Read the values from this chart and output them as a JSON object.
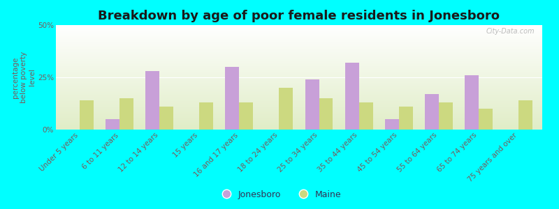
{
  "title": "Breakdown by age of poor female residents in Jonesboro",
  "ylabel": "percentage\nbelow poverty\nlevel",
  "categories": [
    "Under 5 years",
    "6 to 11 years",
    "12 to 14 years",
    "15 years",
    "16 and 17 years",
    "18 to 24 years",
    "25 to 34 years",
    "35 to 44 years",
    "45 to 54 years",
    "55 to 64 years",
    "65 to 74 years",
    "75 years and over"
  ],
  "jonesboro": [
    0,
    5,
    28,
    0,
    30,
    0,
    24,
    32,
    5,
    17,
    26,
    0
  ],
  "maine": [
    14,
    15,
    11,
    13,
    13,
    20,
    15,
    13,
    11,
    13,
    10,
    14
  ],
  "jonesboro_color": "#c8a0d8",
  "maine_color": "#ccd980",
  "background_color": "#00ffff",
  "ylim": [
    0,
    50
  ],
  "ytick_labels": [
    "0%",
    "25%",
    "50%"
  ],
  "title_fontsize": 13,
  "axis_label_fontsize": 7.5,
  "tick_fontsize": 7.5,
  "legend_fontsize": 9,
  "watermark": "City-Data.com"
}
